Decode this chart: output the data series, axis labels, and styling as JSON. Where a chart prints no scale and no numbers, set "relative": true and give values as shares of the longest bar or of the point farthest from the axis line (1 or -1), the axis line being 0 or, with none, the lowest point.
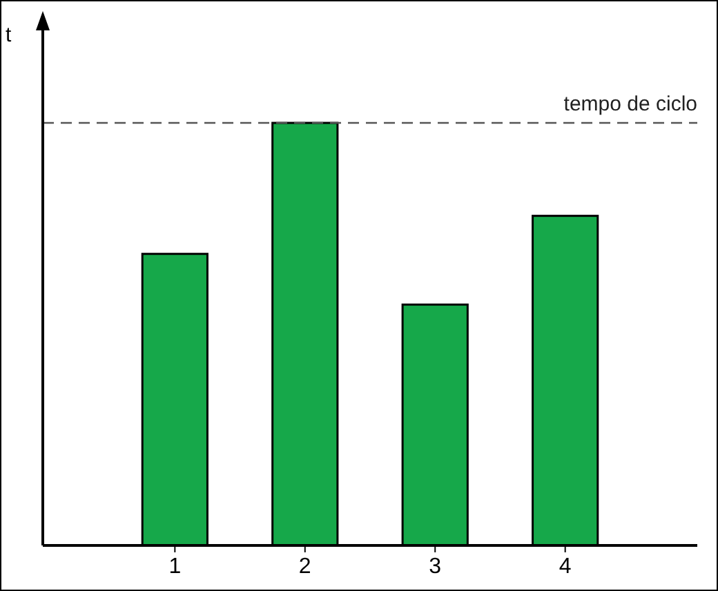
{
  "chart_data": {
    "type": "bar",
    "ylabel": "t",
    "categories": [
      "1",
      "2",
      "3",
      "4"
    ],
    "values": [
      0.69,
      1,
      0.57,
      0.78
    ],
    "color": "#16a84a",
    "relative": true,
    "ref_lines": [
      {
        "axis": "y",
        "value": 1,
        "label": "tempo de ciclo",
        "color": "#555555",
        "line_style": "dashed"
      }
    ]
  }
}
